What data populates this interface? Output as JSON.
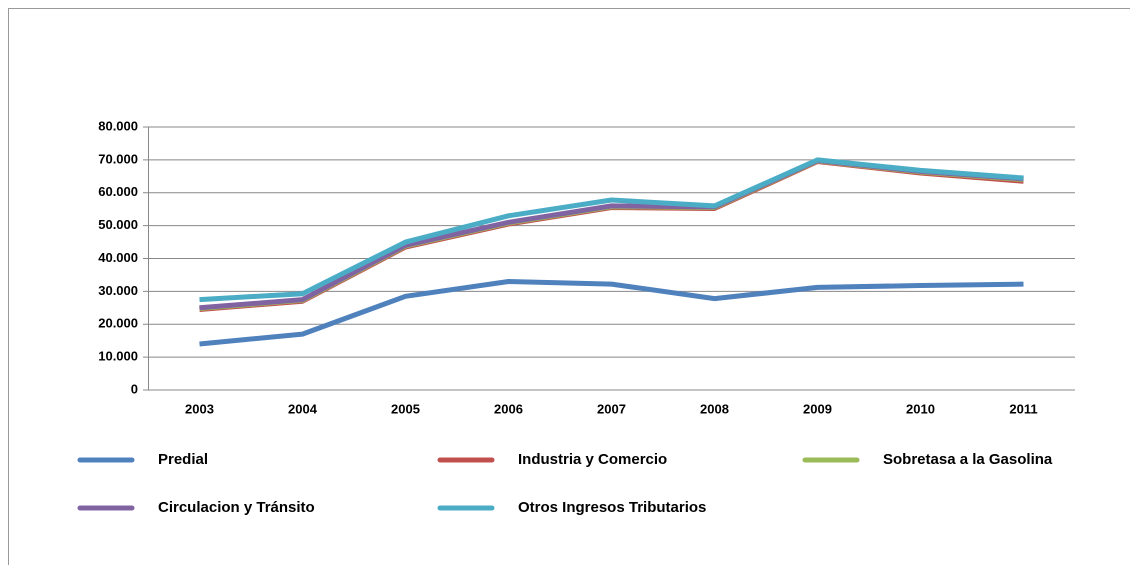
{
  "chart_data": {
    "type": "line",
    "stacked": true,
    "grid": true,
    "categories": [
      "2003",
      "2004",
      "2005",
      "2006",
      "2007",
      "2008",
      "2009",
      "2010",
      "2011"
    ],
    "series": [
      {
        "name": "Predial",
        "color": "#4f81bd",
        "values": [
          14000,
          17000,
          28500,
          33000,
          32200,
          27800,
          31200,
          31800,
          32200
        ]
      },
      {
        "name": "Industria y Comercio",
        "color": "#c0504d",
        "values": [
          10500,
          10000,
          15000,
          17500,
          23300,
          27400,
          38300,
          34200,
          31300
        ]
      },
      {
        "name": "Sobretasa a la Gasolina",
        "color": "#9bbb59",
        "values": [
          300,
          300,
          300,
          300,
          300,
          300,
          200,
          300,
          500
        ]
      },
      {
        "name": "Circulacion y Tránsito",
        "color": "#8064a2",
        "values": [
          200,
          200,
          200,
          200,
          200,
          200,
          100,
          200,
          200
        ]
      },
      {
        "name": "Otros Ingresos Tributarios",
        "color": "#4bacc6",
        "values": [
          2500,
          1800,
          1000,
          2000,
          1800,
          300,
          200,
          300,
          300
        ]
      }
    ],
    "ylim": [
      0,
      80000
    ],
    "yticks": [
      0,
      {
        "value": 10000,
        "label": "10.000"
      },
      {
        "value": 20000,
        "label": "20.000"
      },
      {
        "value": 30000,
        "label": "30.000"
      },
      {
        "value": 40000,
        "label": "40.000"
      },
      {
        "value": 50000,
        "label": "50.000"
      },
      {
        "value": 60000,
        "label": "60.000"
      },
      {
        "value": 70000,
        "label": "70.000"
      },
      {
        "value": 80000,
        "label": "80.000"
      }
    ]
  }
}
